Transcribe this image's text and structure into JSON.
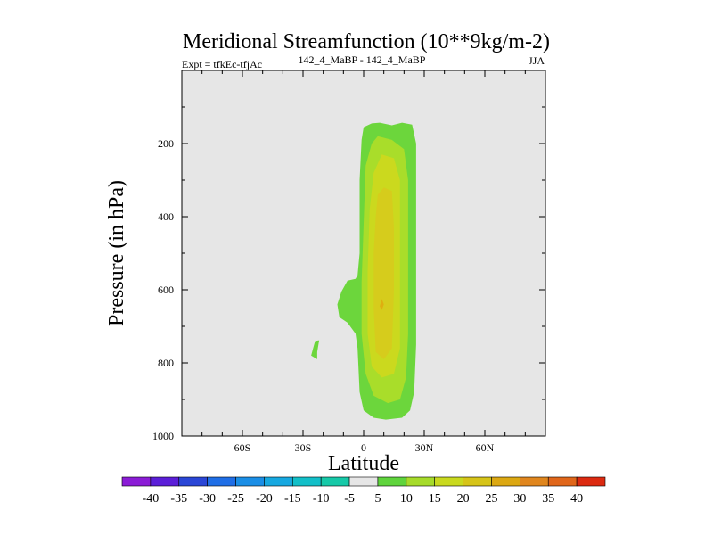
{
  "chart_data": {
    "type": "contour",
    "title": "Meridional Streamfunction (10**9kg/m-2)",
    "subtitle_left": "Expt = tfkEc-tfjAc",
    "subtitle_center": "142_4_MaBP - 142_4_MaBP",
    "subtitle_right": "JJA",
    "xlabel": "Latitude",
    "ylabel": "Pressure (in hPa)",
    "xlim": [
      -90,
      90
    ],
    "ylim": [
      1000,
      0
    ],
    "x_ticks": [
      {
        "value": -60,
        "label": "60S"
      },
      {
        "value": -30,
        "label": "30S"
      },
      {
        "value": 0,
        "label": "0"
      },
      {
        "value": 30,
        "label": "30N"
      },
      {
        "value": 60,
        "label": "60N"
      }
    ],
    "y_ticks": [
      {
        "value": 200,
        "label": "200"
      },
      {
        "value": 400,
        "label": "400"
      },
      {
        "value": 600,
        "label": "600"
      },
      {
        "value": 800,
        "label": "800"
      },
      {
        "value": 1000,
        "label": "1000"
      }
    ],
    "background_color": "#e6e6e6",
    "contour_regions": [
      {
        "level": 5,
        "color": "#6cd63c",
        "outline": [
          [
            4,
            145
          ],
          [
            8,
            143
          ],
          [
            14,
            150
          ],
          [
            19,
            143
          ],
          [
            24,
            148
          ],
          [
            26,
            200
          ],
          [
            26,
            420
          ],
          [
            26,
            600
          ],
          [
            26,
            750
          ],
          [
            25,
            880
          ],
          [
            23,
            930
          ],
          [
            19,
            950
          ],
          [
            11,
            955
          ],
          [
            5,
            950
          ],
          [
            0,
            930
          ],
          [
            -2,
            880
          ],
          [
            -3,
            760
          ],
          [
            -4,
            720
          ],
          [
            -8,
            690
          ],
          [
            -12,
            675
          ],
          [
            -13,
            640
          ],
          [
            -11,
            605
          ],
          [
            -8,
            575
          ],
          [
            -4,
            570
          ],
          [
            -3,
            560
          ],
          [
            -2,
            500
          ],
          [
            -2,
            300
          ],
          [
            -1,
            190
          ],
          [
            0,
            155
          ]
        ]
      },
      {
        "level": 5,
        "color": "#6cd63c",
        "outline": [
          [
            -25,
            760
          ],
          [
            -24,
            740
          ],
          [
            -22,
            738
          ],
          [
            -23,
            770
          ],
          [
            -23,
            790
          ],
          [
            -26,
            780
          ]
        ]
      },
      {
        "level": 10,
        "color": "#a9dd2a",
        "outline": [
          [
            7,
            180
          ],
          [
            14,
            190
          ],
          [
            20,
            215
          ],
          [
            22,
            300
          ],
          [
            22,
            500
          ],
          [
            22,
            720
          ],
          [
            21,
            840
          ],
          [
            18,
            900
          ],
          [
            12,
            910
          ],
          [
            5,
            890
          ],
          [
            1,
            830
          ],
          [
            -1,
            720
          ],
          [
            -1,
            580
          ],
          [
            0,
            420
          ],
          [
            1,
            260
          ],
          [
            4,
            200
          ]
        ]
      },
      {
        "level": 15,
        "color": "#cbd91e",
        "outline": [
          [
            9,
            230
          ],
          [
            15,
            240
          ],
          [
            18,
            300
          ],
          [
            18,
            520
          ],
          [
            18,
            760
          ],
          [
            15,
            830
          ],
          [
            9,
            840
          ],
          [
            4,
            810
          ],
          [
            2,
            720
          ],
          [
            2,
            550
          ],
          [
            3,
            380
          ],
          [
            5,
            280
          ]
        ]
      },
      {
        "level": 20,
        "color": "#d6cc1c",
        "outline": [
          [
            10,
            320
          ],
          [
            14,
            330
          ],
          [
            15,
            430
          ],
          [
            15,
            600
          ],
          [
            14,
            760
          ],
          [
            10,
            790
          ],
          [
            6,
            770
          ],
          [
            5,
            650
          ],
          [
            5,
            500
          ],
          [
            6,
            400
          ],
          [
            7,
            340
          ]
        ]
      },
      {
        "level": 25,
        "color": "#dfae10",
        "outline": [
          [
            9,
            625
          ],
          [
            10,
            640
          ],
          [
            9,
            655
          ],
          [
            8,
            645
          ]
        ]
      }
    ],
    "colorbar": {
      "levels": [
        -40,
        -35,
        -30,
        -25,
        -20,
        -15,
        -10,
        -5,
        5,
        10,
        15,
        20,
        25,
        30,
        35,
        40
      ],
      "colors": [
        "#8b1cd6",
        "#5b1ed8",
        "#2a46d6",
        "#1f6ee6",
        "#1a8ee6",
        "#16a8e0",
        "#12bfc8",
        "#16c9a8",
        "#e6e6e6",
        "#5fd43c",
        "#a6db2a",
        "#c9d91e",
        "#d6c418",
        "#dca812",
        "#e0861e",
        "#e0661a",
        "#dc2a10"
      ]
    }
  }
}
